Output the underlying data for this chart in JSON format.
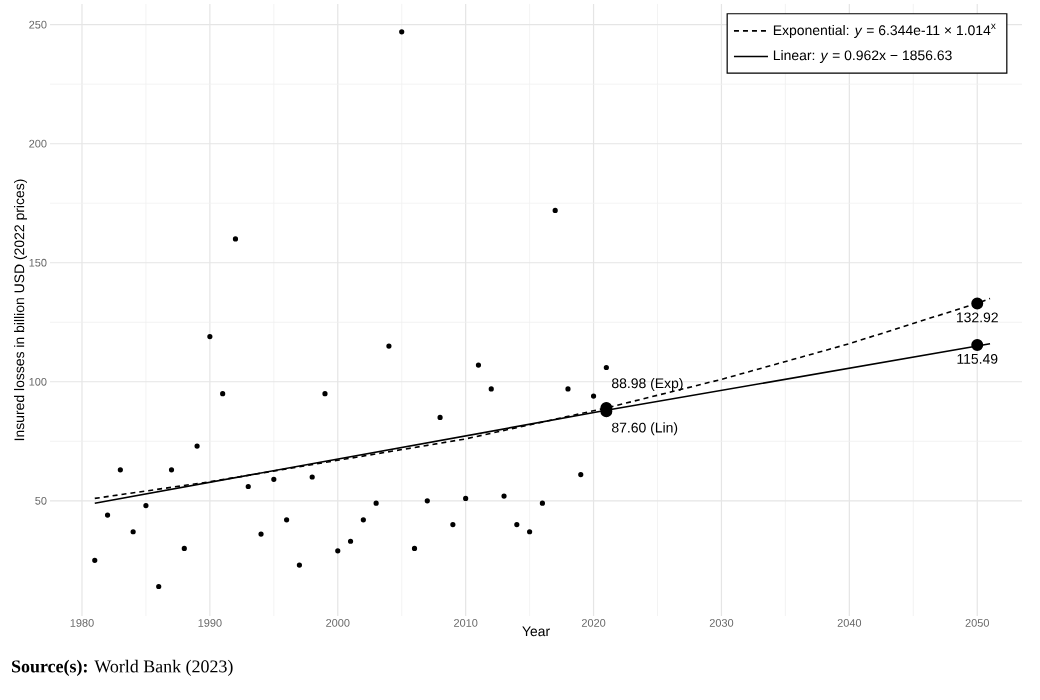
{
  "chart_data": {
    "type": "scatter",
    "xlabel": "Year",
    "ylabel": "Insured losses in billion USD (2022 prices)",
    "annotations": [
      "**Source(s):** World Bank (2023)"
    ],
    "xlim": [
      1977.5,
      2053.5
    ],
    "ylim": [
      1.6,
      258.7
    ],
    "xticks": [
      1980,
      1990,
      2000,
      2010,
      2020,
      2030,
      2040,
      2050
    ],
    "yticks": [
      50,
      100,
      150,
      200,
      250
    ],
    "grid": true,
    "legend": "top right",
    "series": [
      {
        "marker": "circle",
        "color": "#000000",
        "x": [
          1981,
          1982,
          1983,
          1984,
          1985,
          1986,
          1987,
          1988,
          1989,
          1990,
          1991,
          1992,
          1993,
          1994,
          1995,
          1996,
          1997,
          1998,
          1999,
          2000,
          2001,
          2002,
          2003,
          2004,
          2005,
          2006,
          2007,
          2008,
          2009,
          2010,
          2011,
          2012,
          2013,
          2014,
          2015,
          2016,
          2017,
          2018,
          2019,
          2020,
          2021
        ],
        "values": [
          25,
          44,
          63,
          37,
          48,
          14,
          63,
          30,
          73,
          119,
          95,
          160,
          56,
          36,
          59,
          42,
          23,
          60,
          95,
          29,
          33,
          42,
          49,
          115,
          247,
          30,
          50,
          85,
          40,
          51,
          107,
          97,
          52,
          40,
          37,
          49,
          172,
          97,
          61,
          94,
          106
        ]
      },
      {
        "type": "line",
        "name": "Exponential: *y* = 6.344e-11 × 1.014$^{x}$",
        "line_style": "dashed",
        "marker": "none",
        "color": "#000000",
        "x": [
          1981,
          1990,
          2000,
          2010,
          2021,
          2030,
          2040,
          2050,
          2051
        ],
        "values": [
          51,
          58,
          67,
          76,
          89,
          101,
          116,
          133,
          135
        ]
      },
      {
        "type": "line",
        "name": "Linear: *y* = 0.962x − 1856.63",
        "line_style": "solid",
        "marker": "none",
        "color": "#000000",
        "x": [
          1981,
          2021,
          2050,
          2051
        ],
        "values": [
          49,
          88,
          115,
          116
        ]
      },
      {
        "marker": "circle",
        "color": "#000000",
        "x": [
          2021,
          2021,
          2050,
          2050
        ],
        "values": [
          88.98,
          87.6,
          132.92,
          115.49
        ],
        "value_labels": [
          "88.98 (Exp)",
          "87.60 (Lin)",
          "132.92",
          "115.49"
        ]
      }
    ]
  }
}
